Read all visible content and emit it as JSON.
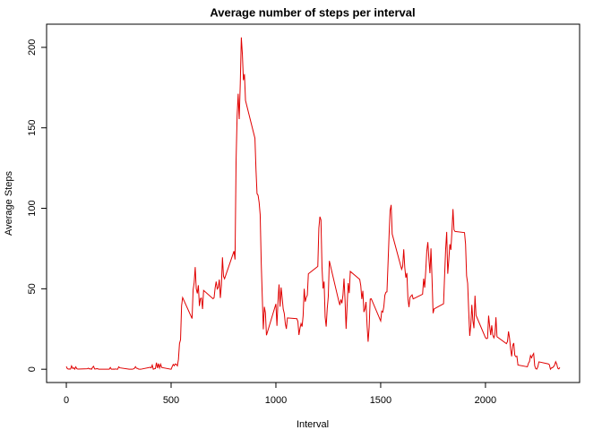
{
  "chart_data": {
    "type": "line",
    "title": "Average number of steps per interval",
    "x_label": "Interval",
    "y_label": "Average Steps",
    "color": "#e00000",
    "xlim": [
      -94.2,
      2449.2
    ],
    "ylim": [
      -8.25,
      214.4
    ],
    "xticks": [
      0,
      500,
      1000,
      1500,
      2000
    ],
    "yticks": [
      0,
      50,
      100,
      150,
      200
    ],
    "grid": false,
    "x": [
      0,
      5,
      10,
      15,
      20,
      25,
      30,
      35,
      40,
      45,
      50,
      55,
      100,
      105,
      110,
      115,
      120,
      125,
      130,
      135,
      140,
      145,
      150,
      155,
      200,
      205,
      210,
      215,
      220,
      225,
      230,
      235,
      240,
      245,
      250,
      255,
      300,
      305,
      310,
      315,
      320,
      325,
      330,
      335,
      340,
      345,
      350,
      355,
      400,
      405,
      410,
      415,
      420,
      425,
      430,
      435,
      440,
      445,
      450,
      455,
      500,
      505,
      510,
      515,
      520,
      525,
      530,
      535,
      540,
      545,
      550,
      555,
      600,
      605,
      610,
      615,
      620,
      625,
      630,
      635,
      640,
      645,
      650,
      655,
      700,
      705,
      710,
      715,
      720,
      725,
      730,
      735,
      740,
      745,
      750,
      755,
      800,
      805,
      810,
      815,
      820,
      825,
      830,
      835,
      840,
      845,
      850,
      855,
      900,
      905,
      910,
      915,
      920,
      925,
      930,
      935,
      940,
      945,
      950,
      955,
      1000,
      1005,
      1010,
      1015,
      1020,
      1025,
      1030,
      1035,
      1040,
      1045,
      1050,
      1055,
      1100,
      1105,
      1110,
      1115,
      1120,
      1125,
      1130,
      1135,
      1140,
      1145,
      1150,
      1155,
      1200,
      1205,
      1210,
      1215,
      1220,
      1225,
      1230,
      1235,
      1240,
      1245,
      1250,
      1255,
      1300,
      1305,
      1310,
      1315,
      1320,
      1325,
      1330,
      1335,
      1340,
      1345,
      1350,
      1355,
      1400,
      1405,
      1410,
      1415,
      1420,
      1425,
      1430,
      1435,
      1440,
      1445,
      1450,
      1455,
      1500,
      1505,
      1510,
      1515,
      1520,
      1525,
      1530,
      1535,
      1540,
      1545,
      1550,
      1555,
      1600,
      1605,
      1610,
      1615,
      1620,
      1625,
      1630,
      1635,
      1640,
      1645,
      1650,
      1655,
      1700,
      1705,
      1710,
      1715,
      1720,
      1725,
      1730,
      1735,
      1740,
      1745,
      1750,
      1755,
      1800,
      1805,
      1810,
      1815,
      1820,
      1825,
      1830,
      1835,
      1840,
      1845,
      1850,
      1855,
      1900,
      1905,
      1910,
      1915,
      1920,
      1925,
      1930,
      1935,
      1940,
      1945,
      1950,
      1955,
      2000,
      2005,
      2010,
      2015,
      2020,
      2025,
      2030,
      2035,
      2040,
      2045,
      2050,
      2055,
      2100,
      2105,
      2110,
      2115,
      2120,
      2125,
      2130,
      2135,
      2140,
      2145,
      2150,
      2155,
      2200,
      2205,
      2210,
      2215,
      2220,
      2225,
      2230,
      2235,
      2240,
      2245,
      2250,
      2255,
      2300,
      2305,
      2310,
      2315,
      2320,
      2325,
      2330,
      2335,
      2340,
      2345,
      2350,
      2355
    ],
    "values": [
      1.7,
      0.3,
      0.1,
      0.2,
      0.1,
      2.1,
      0.5,
      0.9,
      0,
      1.5,
      0.3,
      0.1,
      0.3,
      0.7,
      0.2,
      0.3,
      0,
      1.1,
      1.8,
      0.2,
      0.2,
      0.4,
      0.3,
      0,
      0,
      0,
      1.1,
      0,
      0,
      0.1,
      0,
      0.2,
      0,
      0,
      1.5,
      0.9,
      0,
      0,
      0,
      0,
      0.2,
      0.6,
      1.6,
      0.6,
      0.5,
      0.1,
      0,
      0,
      1.2,
      0.9,
      2.6,
      0,
      0.3,
      0.4,
      4.1,
      0.7,
      3.5,
      0.8,
      3.1,
      1.1,
      0,
      1.6,
      3,
      2.2,
      3.3,
      3,
      2.1,
      6.1,
      16,
      18.3,
      39.5,
      44.5,
      31.5,
      49.3,
      53.8,
      63.5,
      50,
      47.1,
      52.2,
      39.3,
      44,
      44.2,
      37.4,
      49,
      43.8,
      44.4,
      50.5,
      54.5,
      49.9,
      50.8,
      55.7,
      44.3,
      52.3,
      69.5,
      57.8,
      56.2,
      73.4,
      68.2,
      129.4,
      157.5,
      171.2,
      155.4,
      177.3,
      206.2,
      195.9,
      179.6,
      183.4,
      167,
      143.5,
      124,
      109.1,
      108.1,
      103.7,
      96,
      66.2,
      45.2,
      24.8,
      38.8,
      35,
      21.1,
      40.6,
      27,
      42.4,
      52.7,
      38.9,
      50.8,
      44.3,
      37.4,
      34.7,
      28.3,
      25.1,
      31.9,
      31.4,
      29.7,
      21.3,
      25.5,
      28.4,
      26.5,
      33.4,
      50,
      42,
      44.6,
      46,
      59.3,
      63.9,
      87.7,
      94.8,
      92.8,
      63.4,
      50.2,
      54.5,
      32.4,
      26.5,
      37.7,
      45.1,
      67.3,
      42.3,
      39.9,
      43.3,
      41,
      46.2,
      56.4,
      42.8,
      25.1,
      40,
      53.5,
      47.3,
      60.8,
      55.8,
      52,
      43.6,
      48.7,
      35.5,
      37.5,
      41.8,
      27.5,
      17.1,
      26.1,
      43.6,
      43.8,
      30,
      36.1,
      35.5,
      38.8,
      46,
      47.8,
      48.1,
      65.3,
      82.9,
      98.7,
      102.1,
      84,
      62.1,
      64.1,
      74.5,
      63.2,
      56.9,
      59.8,
      43.9,
      38.6,
      44.7,
      45.5,
      46.2,
      43.7,
      46.6,
      56.3,
      50.7,
      61.2,
      73.4,
      79,
      68.9,
      59.7,
      75.1,
      56.5,
      34.8,
      37.5,
      40.7,
      58,
      74.7,
      85.3,
      59.3,
      67.8,
      77.7,
      74.2,
      85.6,
      99.5,
      86.6,
      85.6,
      84.9,
      77.8,
      58,
      53.4,
      36.3,
      20.7,
      27.4,
      40,
      30.2,
      25.5,
      45.7,
      33.5,
      19.6,
      19,
      19.3,
      33.3,
      26.8,
      21.2,
      27.3,
      21.3,
      19.5,
      21.3,
      32.3,
      20.2,
      15.9,
      17.2,
      23.5,
      19.2,
      12.5,
      8,
      14.7,
      16.3,
      8.7,
      7.8,
      8.1,
      2.6,
      1.5,
      3.7,
      4.8,
      8.5,
      7.1,
      8.7,
      9.8,
      2.2,
      0.3,
      0.1,
      1.6,
      4.6,
      3.3,
      2.8,
      0,
      0.8,
      1,
      1.6,
      2.6,
      4.7,
      3.3,
      0.6,
      0.2,
      1.1
    ]
  }
}
